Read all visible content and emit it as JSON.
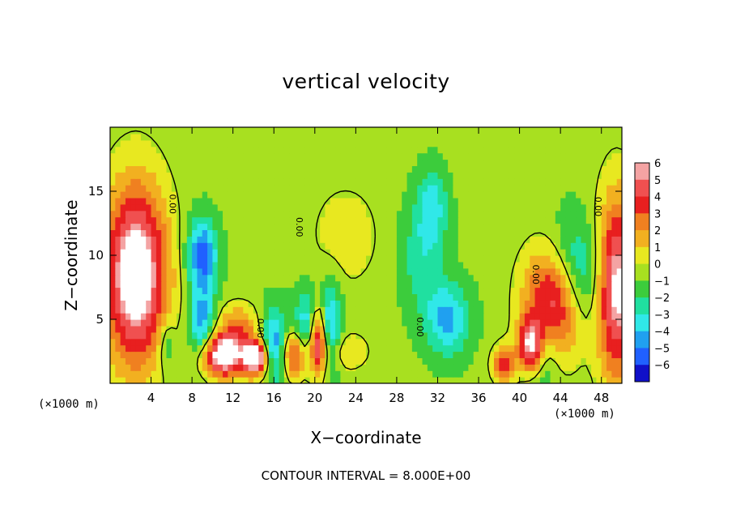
{
  "chart_data": {
    "type": "heatmap",
    "title": "vertical velocity",
    "xlabel": "X−coordinate",
    "ylabel": "Z−coordinate",
    "x_unit_left": "(×1000 m)",
    "x_unit_right": "(×1000 m)",
    "xlim": [
      0,
      50
    ],
    "ylim": [
      0,
      20
    ],
    "x_ticks": [
      4,
      8,
      12,
      16,
      20,
      24,
      28,
      32,
      36,
      40,
      44,
      48
    ],
    "y_ticks": [
      5,
      10,
      15
    ],
    "colorbar": {
      "levels": [
        6,
        5,
        4,
        3,
        2,
        1,
        0,
        -1,
        -2,
        -3,
        -4,
        -5,
        -6
      ],
      "colors": [
        "#f4a3a3",
        "#f05050",
        "#e81f1f",
        "#f08020",
        "#f2b020",
        "#e8e820",
        "#a8e020",
        "#3ccc3c",
        "#20e0a0",
        "#30e8e8",
        "#20a0f0",
        "#2060ff",
        "#1010c8",
        "#7010a0"
      ]
    },
    "contour_label": "0.00",
    "contour_interval_text": "CONTOUR INTERVAL = 8.000E+00",
    "features": [
      {
        "kind": "updraft",
        "x": 2.5,
        "z": 8.5,
        "sx": 2.2,
        "sz": 5.0,
        "w": 8
      },
      {
        "kind": "updraft",
        "x": 49.5,
        "z": 7.5,
        "sx": 1.4,
        "sz": 5.0,
        "w": 7
      },
      {
        "kind": "updraft",
        "x": 43.5,
        "z": 6.5,
        "sx": 2.0,
        "sz": 3.0,
        "w": 9
      },
      {
        "kind": "updraft",
        "x": 41.2,
        "z": 3.0,
        "sx": 0.9,
        "sz": 1.6,
        "w": 8
      },
      {
        "kind": "updraft",
        "x": 11.0,
        "z": 2.2,
        "sx": 1.5,
        "sz": 1.2,
        "w": 8
      },
      {
        "kind": "updraft",
        "x": 14.3,
        "z": 2.0,
        "sx": 0.9,
        "sz": 1.0,
        "w": 8
      },
      {
        "kind": "updraft",
        "x": 20.3,
        "z": 3.5,
        "sx": 0.6,
        "sz": 2.0,
        "w": 8
      },
      {
        "kind": "updraft",
        "x": 18.0,
        "z": 2.3,
        "sx": 0.9,
        "sz": 1.3,
        "w": 5
      },
      {
        "kind": "updraft",
        "x": 38.5,
        "z": 1.5,
        "sx": 0.8,
        "sz": 1.0,
        "w": 4.5
      },
      {
        "kind": "updraft",
        "x": 12.5,
        "z": 4.5,
        "sx": 1.5,
        "sz": 1.2,
        "w": 3
      },
      {
        "kind": "updraft",
        "x": 23.0,
        "z": 2.5,
        "sx": 1.5,
        "sz": 1.0,
        "w": 2
      },
      {
        "kind": "updraft",
        "x": 23.0,
        "z": 11.5,
        "sx": 2.5,
        "sz": 3.0,
        "w": 1.3
      },
      {
        "kind": "downdraft",
        "x": 9.0,
        "z": 10.0,
        "sx": 1.0,
        "sz": 2.0,
        "w": -5
      },
      {
        "kind": "downdraft",
        "x": 9.0,
        "z": 4.5,
        "sx": 0.9,
        "sz": 2.0,
        "w": -4
      },
      {
        "kind": "downdraft",
        "x": 16.0,
        "z": 3.0,
        "sx": 0.9,
        "sz": 2.0,
        "w": -4.5
      },
      {
        "kind": "downdraft",
        "x": 19.5,
        "z": 4.5,
        "sx": 1.0,
        "sz": 2.0,
        "w": -4
      },
      {
        "kind": "downdraft",
        "x": 21.5,
        "z": 4.5,
        "sx": 0.8,
        "sz": 2.5,
        "w": -3.5
      },
      {
        "kind": "downdraft",
        "x": 45.0,
        "z": 8.0,
        "sx": 2.0,
        "sz": 3.0,
        "w": -5.5
      },
      {
        "kind": "downdraft",
        "x": 42.0,
        "z": 3.0,
        "sx": 1.2,
        "sz": 2.5,
        "w": -4
      },
      {
        "kind": "downdraft",
        "x": 33.0,
        "z": 5.0,
        "sx": 1.5,
        "sz": 2.0,
        "w": -3.5
      },
      {
        "kind": "downdraft",
        "x": 30.5,
        "z": 10.0,
        "sx": 1.5,
        "sz": 3.0,
        "w": -2
      },
      {
        "kind": "downdraft",
        "x": 31.5,
        "z": 14.0,
        "sx": 1.0,
        "sz": 2.0,
        "w": -2.5
      },
      {
        "kind": "downdraft",
        "x": 5.5,
        "z": 3.0,
        "sx": 0.6,
        "sz": 1.5,
        "w": -2
      }
    ]
  }
}
